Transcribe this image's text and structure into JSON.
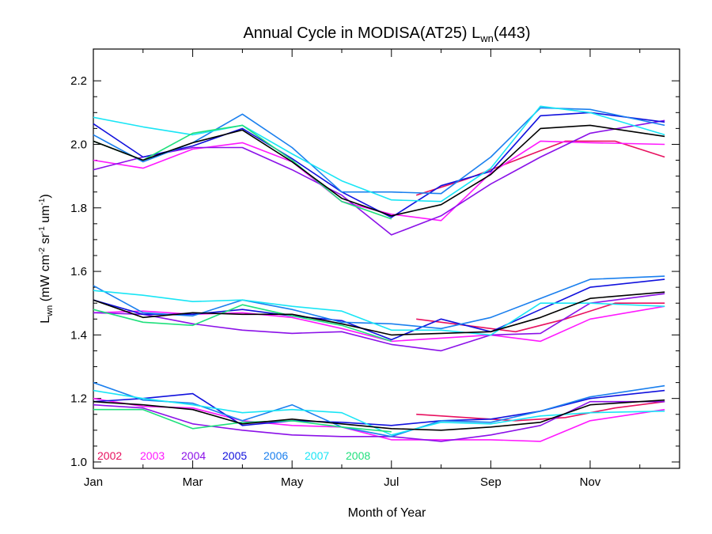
{
  "chart_data": {
    "type": "line",
    "title": "Annual Cycle in MODISA(AT25) L",
    "title_sub": "wn",
    "title_suffix": "(443)",
    "xlabel": "Month of Year",
    "ylabel_main": "L",
    "ylabel_sub": "wn",
    "ylabel_units": " (mW cm",
    "ylabel_e1": "-2",
    "ylabel_mid": " sr",
    "ylabel_e2": "-1",
    "ylabel_mid2": " um",
    "ylabel_e3": "-1",
    "ylabel_end": ")",
    "xlim": [
      1,
      12.8
    ],
    "ylim": [
      0.98,
      2.3
    ],
    "x_tick_labels": [
      {
        "x": 1,
        "label": "Jan"
      },
      {
        "x": 3,
        "label": "Mar"
      },
      {
        "x": 5,
        "label": "May"
      },
      {
        "x": 7,
        "label": "Jul"
      },
      {
        "x": 9,
        "label": "Sep"
      },
      {
        "x": 11,
        "label": "Nov"
      }
    ],
    "y_tick_labels": [
      {
        "y": 1.0,
        "label": "1.0"
      },
      {
        "y": 1.2,
        "label": "1.2"
      },
      {
        "y": 1.4,
        "label": "1.4"
      },
      {
        "y": 1.6,
        "label": "1.6"
      },
      {
        "y": 1.8,
        "label": "1.8"
      },
      {
        "y": 2.0,
        "label": "2.0"
      },
      {
        "y": 2.2,
        "label": "2.2"
      }
    ],
    "grid": false,
    "legend_position": "bottom-left",
    "series": [
      {
        "name": "2002",
        "color": "#e8115f",
        "x": [
          7.5,
          8.5,
          9.5,
          10.5,
          11.5,
          12.5
        ],
        "upper": [
          1.84,
          1.89,
          1.95,
          2.01,
          2.01,
          1.96
        ],
        "middle": [
          1.45,
          1.43,
          1.41,
          1.45,
          1.5,
          1.5
        ],
        "lower": [
          1.15,
          1.14,
          1.13,
          1.14,
          1.17,
          1.19
        ]
      },
      {
        "name": "2003",
        "color": "#ff19ff",
        "x": [
          1,
          2,
          3,
          4,
          5,
          6,
          7,
          8,
          9,
          10,
          11,
          12.5
        ],
        "upper": [
          1.95,
          1.925,
          1.985,
          2.005,
          1.945,
          1.82,
          1.78,
          1.76,
          1.91,
          2.01,
          2.005,
          2.0
        ],
        "middle": [
          1.47,
          1.475,
          1.465,
          1.47,
          1.455,
          1.42,
          1.38,
          1.39,
          1.4,
          1.38,
          1.45,
          1.49
        ],
        "lower": [
          1.2,
          1.175,
          1.17,
          1.13,
          1.115,
          1.11,
          1.07,
          1.07,
          1.07,
          1.065,
          1.13,
          1.165
        ]
      },
      {
        "name": "2004",
        "color": "#8b11e8",
        "x": [
          1,
          2,
          3,
          4,
          5,
          6,
          7,
          8,
          9,
          10,
          11,
          12.5
        ],
        "upper": [
          1.92,
          1.96,
          1.99,
          1.99,
          1.92,
          1.84,
          1.715,
          1.775,
          1.875,
          1.96,
          2.035,
          2.075
        ],
        "middle": [
          1.47,
          1.465,
          1.435,
          1.415,
          1.405,
          1.41,
          1.37,
          1.35,
          1.4,
          1.405,
          1.5,
          1.53
        ],
        "lower": [
          1.18,
          1.17,
          1.12,
          1.1,
          1.085,
          1.08,
          1.08,
          1.065,
          1.085,
          1.115,
          1.19,
          1.19
        ]
      },
      {
        "name": "2005",
        "color": "#1111dd",
        "x": [
          1,
          2,
          3,
          4,
          5,
          6,
          7,
          8,
          9,
          10,
          11,
          12.5
        ],
        "upper": [
          2.065,
          1.96,
          1.995,
          2.05,
          1.955,
          1.85,
          1.77,
          1.87,
          1.915,
          2.09,
          2.1,
          2.07
        ],
        "middle": [
          1.51,
          1.465,
          1.465,
          1.48,
          1.46,
          1.445,
          1.385,
          1.45,
          1.41,
          1.48,
          1.55,
          1.575
        ],
        "lower": [
          1.19,
          1.2,
          1.215,
          1.115,
          1.13,
          1.125,
          1.115,
          1.13,
          1.135,
          1.16,
          1.2,
          1.225
        ]
      },
      {
        "name": "2006",
        "color": "#1a7fee",
        "x": [
          1,
          2,
          3,
          4,
          5,
          6,
          7,
          8,
          9,
          10,
          11,
          12.5
        ],
        "upper": [
          2.03,
          1.945,
          2.005,
          2.095,
          1.99,
          1.85,
          1.85,
          1.845,
          1.96,
          2.115,
          2.11,
          2.06
        ],
        "middle": [
          1.555,
          1.47,
          1.46,
          1.51,
          1.48,
          1.44,
          1.435,
          1.42,
          1.455,
          1.515,
          1.575,
          1.585
        ],
        "lower": [
          1.25,
          1.195,
          1.185,
          1.13,
          1.18,
          1.11,
          1.08,
          1.13,
          1.125,
          1.16,
          1.205,
          1.24
        ]
      },
      {
        "name": "2007",
        "color": "#19e5f5",
        "x": [
          1,
          2,
          3,
          4,
          5,
          6,
          7,
          8,
          9,
          10,
          11,
          12.5
        ],
        "upper": [
          2.085,
          2.055,
          2.03,
          2.06,
          1.97,
          1.885,
          1.825,
          1.82,
          1.925,
          2.12,
          2.1,
          2.03
        ],
        "middle": [
          1.54,
          1.525,
          1.505,
          1.51,
          1.49,
          1.475,
          1.415,
          1.415,
          1.4,
          1.5,
          1.5,
          1.49
        ],
        "lower": [
          1.225,
          1.2,
          1.18,
          1.155,
          1.165,
          1.155,
          1.085,
          1.125,
          1.12,
          1.145,
          1.155,
          1.16
        ]
      },
      {
        "name": "2008",
        "color": "#1fe07c",
        "x": [
          1,
          2,
          3,
          4,
          5,
          6,
          7
        ],
        "upper": [
          2.01,
          1.95,
          2.035,
          2.06,
          1.95,
          1.82,
          1.765
        ],
        "middle": [
          1.48,
          1.44,
          1.43,
          1.495,
          1.46,
          1.43,
          1.38
        ],
        "lower": [
          1.165,
          1.165,
          1.105,
          1.125,
          1.13,
          1.11,
          1.095
        ]
      },
      {
        "name": "",
        "color": "#000000",
        "x": [
          1,
          2,
          3,
          4,
          5,
          6,
          7,
          8,
          9,
          10,
          11,
          12.5
        ],
        "upper": [
          2.01,
          1.95,
          2.005,
          2.045,
          1.945,
          1.83,
          1.775,
          1.81,
          1.905,
          2.05,
          2.06,
          2.025
        ],
        "middle": [
          1.51,
          1.455,
          1.47,
          1.465,
          1.465,
          1.435,
          1.4,
          1.405,
          1.41,
          1.455,
          1.515,
          1.535
        ],
        "lower": [
          1.19,
          1.18,
          1.165,
          1.12,
          1.135,
          1.12,
          1.105,
          1.1,
          1.11,
          1.125,
          1.18,
          1.195
        ]
      }
    ]
  }
}
